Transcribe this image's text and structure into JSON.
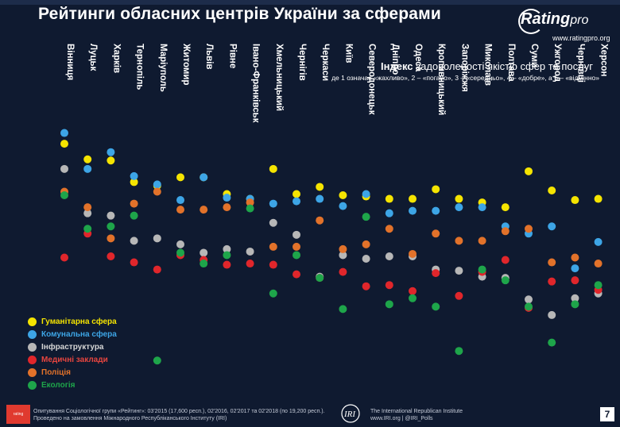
{
  "header": {
    "title": "Рейтинги обласних центрів України за сферами",
    "logo_text": "Rating",
    "logo_text_suffix": "pro",
    "logo_url": "www.ratingpro.org"
  },
  "index_heading": {
    "bold": "Індекс",
    "rest": " задоволеності якістю сфер та послуг",
    "subtitle": "де 1 означає «жахливо», 2 – «погано», 3 – «середньо», 4 – «добре», а 5 – «відмінно»"
  },
  "colors": {
    "background": "#0f1a30",
    "Гуманітарна сфера": "#f5e400",
    "Комунальна сфера": "#3da5e6",
    "Інфраструктура": "#b7b7b7",
    "Медичні заклади": "#e0262b",
    "Поліція": "#e2722a",
    "Екологія": "#1ea54a"
  },
  "legend": [
    {
      "label": "Гуманітарна сфера",
      "color": "#f5e400",
      "text_color": "#f5e400"
    },
    {
      "label": "Комунальна сфера",
      "color": "#3da5e6",
      "text_color": "#3da5e6"
    },
    {
      "label": "Інфраструктура",
      "color": "#b7b7b7",
      "text_color": "#d6d6d6"
    },
    {
      "label": "Медичні заклади",
      "color": "#e0262b",
      "text_color": "#e8453f"
    },
    {
      "label": "Поліція",
      "color": "#e2722a",
      "text_color": "#e2722a"
    },
    {
      "label": "Екологія",
      "color": "#1ea54a",
      "text_color": "#1ea54a"
    }
  ],
  "chart_data": {
    "type": "scatter",
    "ylim": [
      2.0,
      4.2
    ],
    "legend_position": "bottom-left",
    "grid": false,
    "categories": [
      "Вінниця",
      "Луцьк",
      "Харків",
      "Тернопіль",
      "Маріуполь",
      "Житомир",
      "Львів",
      "Рівне",
      "Івано-Франківськ",
      "Хмельницький",
      "Чернігів",
      "Черкаси",
      "Київ",
      "Северодонецьк",
      "Дніпро",
      "Одеса",
      "Кропивницький",
      "Запоріжжя",
      "Миколаїв",
      "Полтава",
      "Суми",
      "Ужгород",
      "Чернівці",
      "Херсон"
    ],
    "series": [
      {
        "name": "Гуманітарна сфера",
        "color": "#f5e400",
        "values": [
          4.06,
          3.93,
          3.92,
          3.74,
          3.71,
          3.78,
          3.78,
          3.64,
          3.6,
          3.85,
          3.64,
          3.7,
          3.63,
          3.62,
          3.6,
          3.6,
          3.68,
          3.6,
          3.57,
          3.53,
          3.83,
          3.67,
          3.59,
          3.6
        ]
      },
      {
        "name": "Комунальна сфера",
        "color": "#3da5e6",
        "values": [
          4.15,
          3.85,
          3.99,
          3.79,
          3.72,
          3.59,
          3.78,
          3.61,
          3.6,
          3.56,
          3.58,
          3.6,
          3.54,
          3.64,
          3.48,
          3.5,
          3.5,
          3.53,
          3.53,
          3.37,
          3.31,
          3.37,
          3.02,
          3.24
        ]
      },
      {
        "name": "Інфраструктура",
        "color": "#b7b7b7",
        "values": [
          3.85,
          3.48,
          3.46,
          3.25,
          3.27,
          3.22,
          3.15,
          3.18,
          3.16,
          3.4,
          3.3,
          2.95,
          3.13,
          3.1,
          3.12,
          3.12,
          3.01,
          3.0,
          2.95,
          2.94,
          2.76,
          2.63,
          2.77,
          2.81
        ]
      },
      {
        "name": "Медичні заклади",
        "color": "#e0262b",
        "values": [
          3.11,
          3.31,
          3.12,
          3.07,
          3.01,
          3.13,
          3.09,
          3.05,
          3.06,
          3.05,
          2.97,
          2.94,
          2.99,
          2.87,
          2.88,
          2.83,
          2.98,
          2.79,
          2.99,
          3.09,
          2.69,
          2.91,
          2.92,
          2.84
        ]
      },
      {
        "name": "Поліція",
        "color": "#e2722a",
        "values": [
          3.66,
          3.53,
          3.27,
          3.56,
          3.66,
          3.51,
          3.51,
          3.53,
          3.57,
          3.2,
          3.2,
          3.42,
          3.18,
          3.22,
          3.35,
          3.14,
          3.31,
          3.25,
          3.25,
          3.33,
          3.35,
          3.07,
          3.11,
          3.06
        ]
      },
      {
        "name": "Екологія",
        "color": "#1ea54a",
        "values": [
          3.63,
          3.35,
          3.37,
          3.46,
          2.25,
          3.15,
          3.06,
          3.13,
          3.52,
          2.81,
          3.13,
          2.94,
          2.68,
          3.45,
          2.72,
          2.77,
          2.7,
          2.33,
          3.01,
          2.92,
          2.7,
          2.4,
          2.72,
          2.88
        ]
      }
    ]
  },
  "footer": {
    "badge": "rating",
    "left_line1": "Опитування Соціологічної групи «Рейтинг»: 03'2015 (17,600 респ.), 02'2016, 02'2017 та 02'2018 (по 19,200 респ.).",
    "left_line2": "Проведено на замовлення Міжнародного Республіканського Інституту (IRI)",
    "right_line1": "The International Republican Institute",
    "right_line2": "www.IRI.org | @IRI_Polls",
    "page_number": "7"
  }
}
